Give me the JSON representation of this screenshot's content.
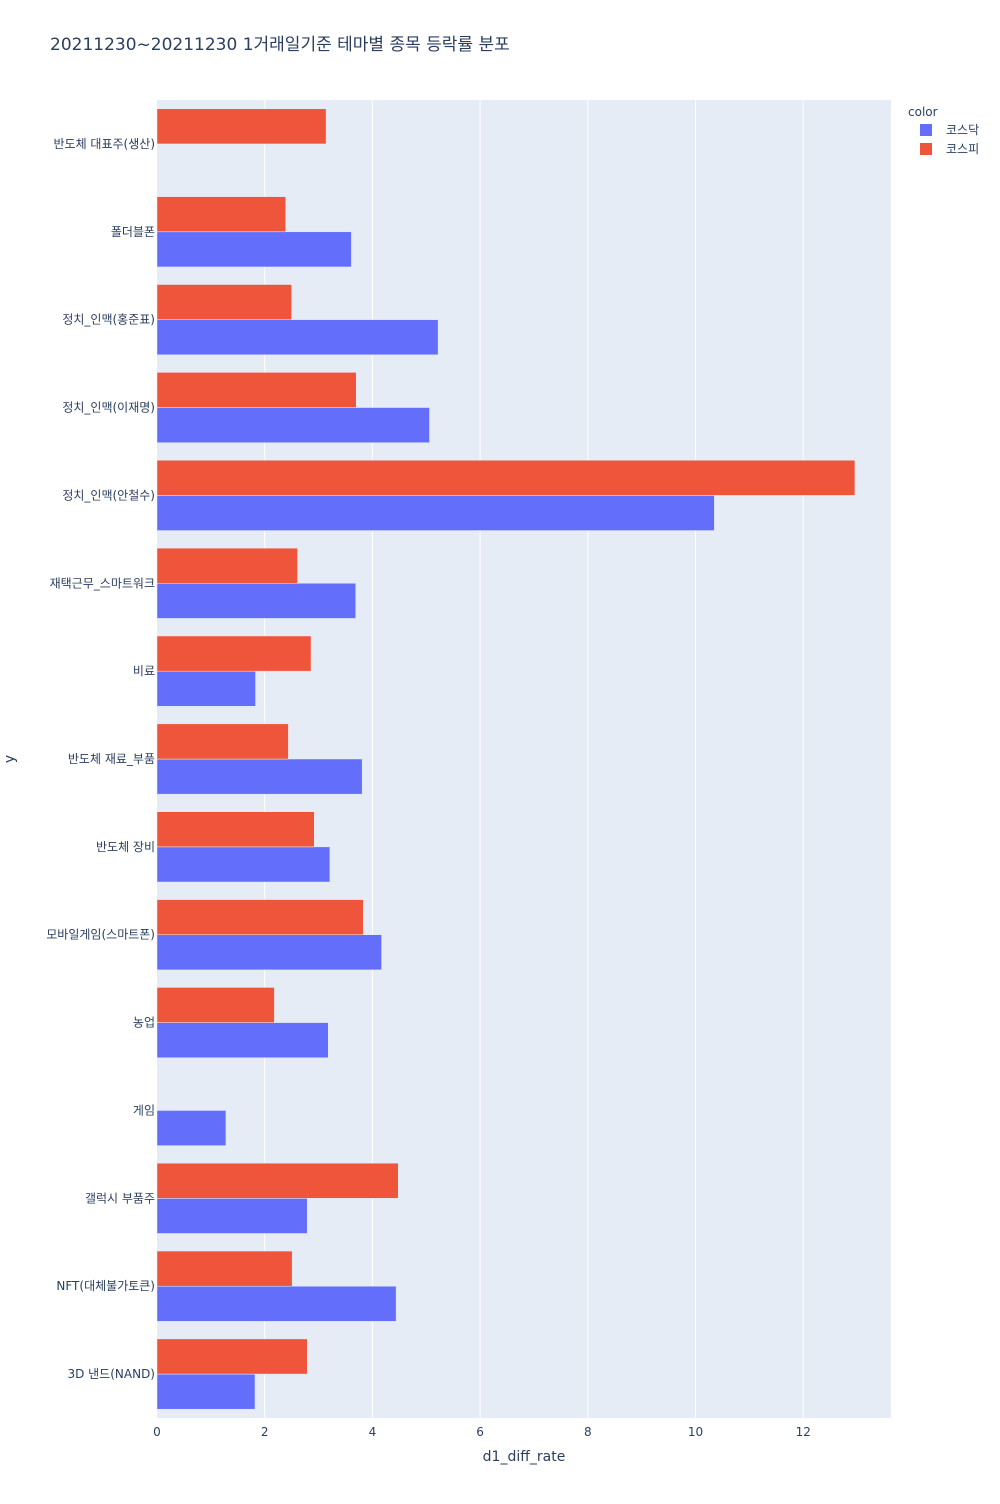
{
  "chart_data": {
    "type": "bar",
    "orientation": "horizontal",
    "barmode": "group",
    "title": "20211230~20211230 1거래일기준 테마별 종목 등락률 분포",
    "xlabel": "d1_diff_rate",
    "ylabel": "y",
    "xlim": [
      0,
      13.63
    ],
    "xticks": [
      0,
      2,
      4,
      6,
      8,
      10,
      12
    ],
    "grid": true,
    "legend": {
      "title": "color",
      "position": "top-right"
    },
    "categories": [
      "반도체 대표주(생산)",
      "폴더블폰",
      "정치_인맥(홍준표)",
      "정치_인맥(이재명)",
      "정치_인맥(안철수)",
      "재택근무_스마트워크",
      "비료",
      "반도체 재료_부품",
      "반도체 장비",
      "모바일게임(스마트폰)",
      "농업",
      "게임",
      "갤럭시 부품주",
      "NFT(대체불가토큰)",
      "3D 낸드(NAND)"
    ],
    "series": [
      {
        "name": "코스닥",
        "color": "#636efa",
        "values": [
          null,
          3.61,
          5.22,
          5.06,
          10.35,
          3.69,
          1.83,
          3.81,
          3.21,
          4.17,
          3.18,
          1.28,
          2.79,
          4.44,
          1.82
        ]
      },
      {
        "name": "코스피",
        "color": "#ef553b",
        "values": [
          3.14,
          2.39,
          2.5,
          3.7,
          12.96,
          2.61,
          2.86,
          2.44,
          2.92,
          3.83,
          2.18,
          null,
          4.48,
          2.51,
          2.79
        ]
      }
    ]
  }
}
